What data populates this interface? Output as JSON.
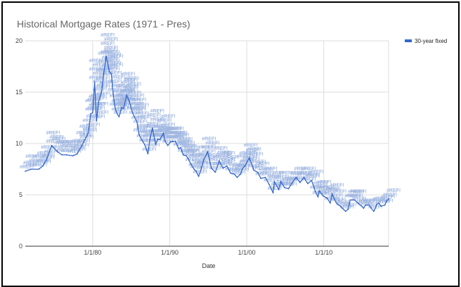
{
  "chart_data": {
    "type": "line",
    "title": "Historical Mortgage Rates (1971 - Pres)",
    "xlabel": "Date",
    "ylabel": "",
    "x_range": [
      "1971-04",
      "2018-06"
    ],
    "x_ticks": [
      "1/1/80",
      "1/1/90",
      "1/1/00",
      "1/1/10"
    ],
    "ylim": [
      0,
      20
    ],
    "y_ticks": [
      0,
      5,
      10,
      15,
      20
    ],
    "grid": true,
    "legend_position": "right",
    "line_color": "#3366cc",
    "annotation_text": "#REF!",
    "series": [
      {
        "name": "30-year fixed",
        "x": [
          "1971-04",
          "1972-01",
          "1973-01",
          "1973-07",
          "1974-01",
          "1974-09",
          "1975-06",
          "1976-01",
          "1976-08",
          "1977-06",
          "1978-01",
          "1978-08",
          "1979-01",
          "1979-06",
          "1979-10",
          "1980-01",
          "1980-04",
          "1980-07",
          "1980-10",
          "1981-03",
          "1981-06",
          "1981-10",
          "1982-03",
          "1982-06",
          "1982-09",
          "1982-12",
          "1983-03",
          "1983-06",
          "1983-10",
          "1984-01",
          "1984-06",
          "1984-10",
          "1985-03",
          "1985-06",
          "1985-10",
          "1986-01",
          "1986-06",
          "1986-10",
          "1987-03",
          "1987-06",
          "1987-10",
          "1988-03",
          "1988-06",
          "1988-10",
          "1989-03",
          "1989-06",
          "1989-10",
          "1990-03",
          "1990-06",
          "1990-10",
          "1991-03",
          "1991-06",
          "1991-10",
          "1992-03",
          "1992-06",
          "1992-10",
          "1993-03",
          "1993-06",
          "1993-10",
          "1994-03",
          "1994-06",
          "1994-12",
          "1995-06",
          "1995-12",
          "1996-06",
          "1996-12",
          "1997-06",
          "1997-12",
          "1998-06",
          "1998-10",
          "1999-03",
          "1999-06",
          "1999-10",
          "2000-05",
          "2000-08",
          "2000-12",
          "2001-06",
          "2001-11",
          "2002-06",
          "2002-12",
          "2003-06",
          "2003-08",
          "2004-03",
          "2004-06",
          "2004-12",
          "2005-06",
          "2005-12",
          "2006-06",
          "2006-12",
          "2007-06",
          "2007-12",
          "2008-06",
          "2008-12",
          "2009-04",
          "2009-06",
          "2009-12",
          "2010-06",
          "2010-11",
          "2011-02",
          "2011-06",
          "2011-10",
          "2012-03",
          "2012-06",
          "2012-11",
          "2013-03",
          "2013-06",
          "2013-09",
          "2014-01",
          "2014-06",
          "2014-12",
          "2015-03",
          "2015-06",
          "2015-12",
          "2016-03",
          "2016-07",
          "2016-12",
          "2017-03",
          "2017-06",
          "2017-12",
          "2018-03",
          "2018-06"
        ],
        "values": [
          7.3,
          7.5,
          7.5,
          7.8,
          8.4,
          9.8,
          9.2,
          8.9,
          8.9,
          8.8,
          9.0,
          9.8,
          10.4,
          11.0,
          12.9,
          13.0,
          16.0,
          12.2,
          14.0,
          15.1,
          16.7,
          18.5,
          17.0,
          16.8,
          14.8,
          13.4,
          12.9,
          12.6,
          13.5,
          13.4,
          14.7,
          14.1,
          13.0,
          12.6,
          12.1,
          10.9,
          10.3,
          9.9,
          9.0,
          10.4,
          11.5,
          9.9,
          10.4,
          10.4,
          11.0,
          10.2,
          9.8,
          10.2,
          10.2,
          10.2,
          9.5,
          9.6,
          8.9,
          8.8,
          8.5,
          8.0,
          7.5,
          7.3,
          6.8,
          7.7,
          8.4,
          9.2,
          7.6,
          7.2,
          8.3,
          7.6,
          7.8,
          7.1,
          7.0,
          6.7,
          7.0,
          7.5,
          7.8,
          8.6,
          8.1,
          7.4,
          7.2,
          6.6,
          6.7,
          6.0,
          5.2,
          6.3,
          5.5,
          6.3,
          5.7,
          5.6,
          6.2,
          6.7,
          6.2,
          6.7,
          6.1,
          6.4,
          5.3,
          4.8,
          5.4,
          4.9,
          4.7,
          4.2,
          5.1,
          4.5,
          4.1,
          3.9,
          3.7,
          3.4,
          3.6,
          4.5,
          4.5,
          4.5,
          4.2,
          3.9,
          3.7,
          4.0,
          4.0,
          3.7,
          3.4,
          4.1,
          4.2,
          3.9,
          4.0,
          4.4,
          4.6
        ]
      }
    ]
  }
}
